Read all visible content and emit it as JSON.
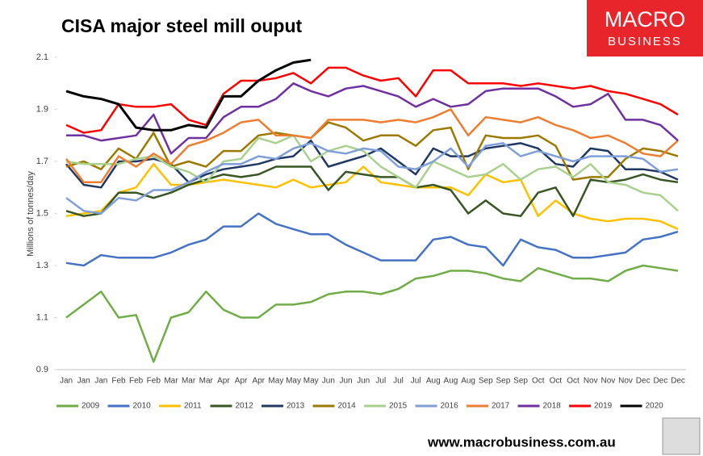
{
  "chart_data": {
    "type": "line",
    "title": "CISA major steel mill ouput",
    "ylabel": "Millions of tonnes/day",
    "logo": [
      "MACRO",
      "BUSINESS"
    ],
    "footer": "www.macrobusiness.com.au",
    "categories": [
      "Jan",
      "Jan",
      "Jan",
      "Feb",
      "Feb",
      "Feb",
      "Mar",
      "Mar",
      "Mar",
      "Apr",
      "Apr",
      "Apr",
      "May",
      "May",
      "May",
      "Jun",
      "Jun",
      "Jun",
      "Jul",
      "Jul",
      "Jul",
      "Aug",
      "Aug",
      "Aug",
      "Sep",
      "Sep",
      "Sep",
      "Oct",
      "Oct",
      "Oct",
      "Nov",
      "Nov",
      "Nov",
      "Dec",
      "Dec",
      "Dec"
    ],
    "ylim": [
      0.9,
      2.1
    ],
    "yticks": [
      0.9,
      1.1,
      1.3,
      1.5,
      1.7,
      1.9,
      2.1
    ],
    "grid": false,
    "legend": "bottom",
    "series": [
      {
        "name": "2009",
        "color": "#70ad47",
        "values": [
          1.1,
          1.15,
          1.2,
          1.1,
          1.11,
          0.93,
          1.1,
          1.12,
          1.2,
          1.13,
          1.1,
          1.1,
          1.15,
          1.15,
          1.16,
          1.19,
          1.2,
          1.2,
          1.19,
          1.21,
          1.25,
          1.26,
          1.28,
          1.28,
          1.27,
          1.25,
          1.24,
          1.29,
          1.27,
          1.25,
          1.25,
          1.24,
          1.28,
          1.3,
          1.29,
          1.28
        ]
      },
      {
        "name": "2010",
        "color": "#4472c4",
        "values": [
          1.31,
          1.3,
          1.34,
          1.33,
          1.33,
          1.33,
          1.35,
          1.38,
          1.4,
          1.45,
          1.45,
          1.5,
          1.46,
          1.44,
          1.42,
          1.42,
          1.38,
          1.35,
          1.32,
          1.32,
          1.32,
          1.4,
          1.41,
          1.38,
          1.37,
          1.3,
          1.4,
          1.37,
          1.36,
          1.33,
          1.33,
          1.34,
          1.35,
          1.4,
          1.41,
          1.43
        ]
      },
      {
        "name": "2011",
        "color": "#ffc000",
        "values": [
          1.49,
          1.5,
          1.51,
          1.58,
          1.6,
          1.69,
          1.61,
          1.61,
          1.62,
          1.63,
          1.62,
          1.61,
          1.6,
          1.63,
          1.6,
          1.61,
          1.62,
          1.68,
          1.62,
          1.61,
          1.6,
          1.6,
          1.6,
          1.57,
          1.65,
          1.62,
          1.63,
          1.49,
          1.55,
          1.5,
          1.48,
          1.47,
          1.48,
          1.48,
          1.47,
          1.44
        ]
      },
      {
        "name": "2012",
        "color": "#375623",
        "values": [
          1.51,
          1.49,
          1.5,
          1.58,
          1.58,
          1.56,
          1.58,
          1.61,
          1.63,
          1.65,
          1.64,
          1.65,
          1.68,
          1.68,
          1.68,
          1.59,
          1.66,
          1.65,
          1.64,
          1.64,
          1.6,
          1.61,
          1.59,
          1.5,
          1.55,
          1.5,
          1.49,
          1.58,
          1.6,
          1.49,
          1.63,
          1.62,
          1.63,
          1.65,
          1.63,
          1.62
        ]
      },
      {
        "name": "2013",
        "color": "#203864",
        "values": [
          1.69,
          1.61,
          1.6,
          1.7,
          1.7,
          1.71,
          1.69,
          1.62,
          1.65,
          1.67,
          1.68,
          1.69,
          1.71,
          1.72,
          1.78,
          1.68,
          1.7,
          1.72,
          1.75,
          1.7,
          1.65,
          1.75,
          1.72,
          1.72,
          1.75,
          1.76,
          1.77,
          1.75,
          1.69,
          1.68,
          1.75,
          1.74,
          1.67,
          1.67,
          1.66,
          1.63
        ]
      },
      {
        "name": "2014",
        "color": "#9c7a00",
        "values": [
          1.68,
          1.7,
          1.67,
          1.75,
          1.71,
          1.81,
          1.68,
          1.7,
          1.68,
          1.74,
          1.74,
          1.8,
          1.81,
          1.8,
          1.79,
          1.85,
          1.83,
          1.78,
          1.8,
          1.8,
          1.76,
          1.82,
          1.83,
          1.67,
          1.8,
          1.79,
          1.79,
          1.8,
          1.76,
          1.63,
          1.64,
          1.64,
          1.71,
          1.75,
          1.74,
          1.72
        ]
      },
      {
        "name": "2015",
        "color": "#a9d18e",
        "values": [
          1.7,
          1.69,
          1.69,
          1.69,
          1.71,
          1.72,
          1.68,
          1.66,
          1.62,
          1.7,
          1.71,
          1.79,
          1.77,
          1.8,
          1.7,
          1.74,
          1.76,
          1.74,
          1.68,
          1.64,
          1.6,
          1.7,
          1.67,
          1.64,
          1.65,
          1.69,
          1.63,
          1.67,
          1.68,
          1.64,
          1.69,
          1.62,
          1.61,
          1.58,
          1.57,
          1.51
        ]
      },
      {
        "name": "2016",
        "color": "#7f9fd9",
        "values": [
          1.56,
          1.51,
          1.5,
          1.56,
          1.55,
          1.59,
          1.59,
          1.62,
          1.66,
          1.69,
          1.69,
          1.72,
          1.71,
          1.75,
          1.77,
          1.74,
          1.73,
          1.75,
          1.74,
          1.68,
          1.67,
          1.7,
          1.75,
          1.68,
          1.76,
          1.77,
          1.72,
          1.74,
          1.72,
          1.7,
          1.72,
          1.72,
          1.72,
          1.71,
          1.66,
          1.67
        ]
      },
      {
        "name": "2017",
        "color": "#ed7d31",
        "values": [
          1.71,
          1.62,
          1.62,
          1.72,
          1.68,
          1.73,
          1.69,
          1.76,
          1.78,
          1.81,
          1.85,
          1.86,
          1.8,
          1.8,
          1.79,
          1.86,
          1.86,
          1.86,
          1.85,
          1.86,
          1.85,
          1.87,
          1.9,
          1.8,
          1.87,
          1.86,
          1.85,
          1.87,
          1.84,
          1.82,
          1.79,
          1.8,
          1.77,
          1.73,
          1.72,
          1.78
        ]
      },
      {
        "name": "2018",
        "color": "#7030a0",
        "values": [
          1.8,
          1.8,
          1.78,
          1.79,
          1.8,
          1.88,
          1.73,
          1.79,
          1.79,
          1.87,
          1.91,
          1.91,
          1.94,
          2.0,
          1.97,
          1.95,
          1.98,
          1.99,
          1.97,
          1.95,
          1.91,
          1.94,
          1.91,
          1.92,
          1.97,
          1.98,
          1.98,
          1.98,
          1.95,
          1.91,
          1.92,
          1.96,
          1.86,
          1.86,
          1.84,
          1.78
        ]
      },
      {
        "name": "2019",
        "color": "#ff0000",
        "values": [
          1.84,
          1.81,
          1.82,
          1.92,
          1.91,
          1.91,
          1.92,
          1.86,
          1.84,
          1.96,
          2.01,
          2.01,
          2.02,
          2.04,
          2.0,
          2.06,
          2.06,
          2.03,
          2.01,
          2.02,
          1.95,
          2.05,
          2.05,
          2.0,
          2.0,
          2.0,
          1.99,
          2.0,
          1.99,
          1.98,
          1.99,
          1.97,
          1.96,
          1.94,
          1.92,
          1.88
        ]
      },
      {
        "name": "2020",
        "color": "#000000",
        "values": [
          1.97,
          1.95,
          1.94,
          1.92,
          1.83,
          1.82,
          1.82,
          1.84,
          1.83,
          1.95,
          1.95,
          2.01,
          2.05,
          2.08,
          2.09,
          null,
          null,
          null,
          null,
          null,
          null,
          null,
          null,
          null,
          null,
          null,
          null,
          null,
          null,
          null,
          null,
          null,
          null,
          null,
          null,
          null
        ]
      }
    ]
  }
}
